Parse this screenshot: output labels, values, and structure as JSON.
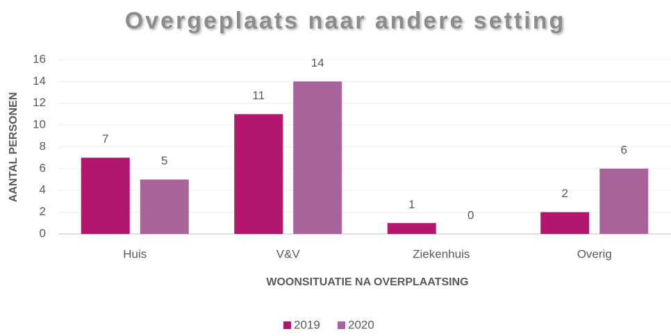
{
  "chart_data": {
    "type": "bar",
    "title": "Overgeplaats naar andere setting",
    "y_label": "AANTAL PERSONEN",
    "x_label": "WOONSITUATIE NA OVERPLAATSING",
    "categories": [
      "Huis",
      "V&V",
      "Ziekenhuis",
      "Overig"
    ],
    "series": [
      {
        "name": "2019",
        "color": "#b3176d",
        "values": [
          7,
          11,
          1,
          2
        ]
      },
      {
        "name": "2020",
        "color": "#a8649a",
        "values": [
          5,
          14,
          0,
          6
        ]
      }
    ],
    "ylim": [
      0,
      16
    ],
    "yticks": [
      0,
      2,
      4,
      6,
      8,
      10,
      12,
      14,
      16
    ],
    "grid": true,
    "legend": "bottom"
  }
}
